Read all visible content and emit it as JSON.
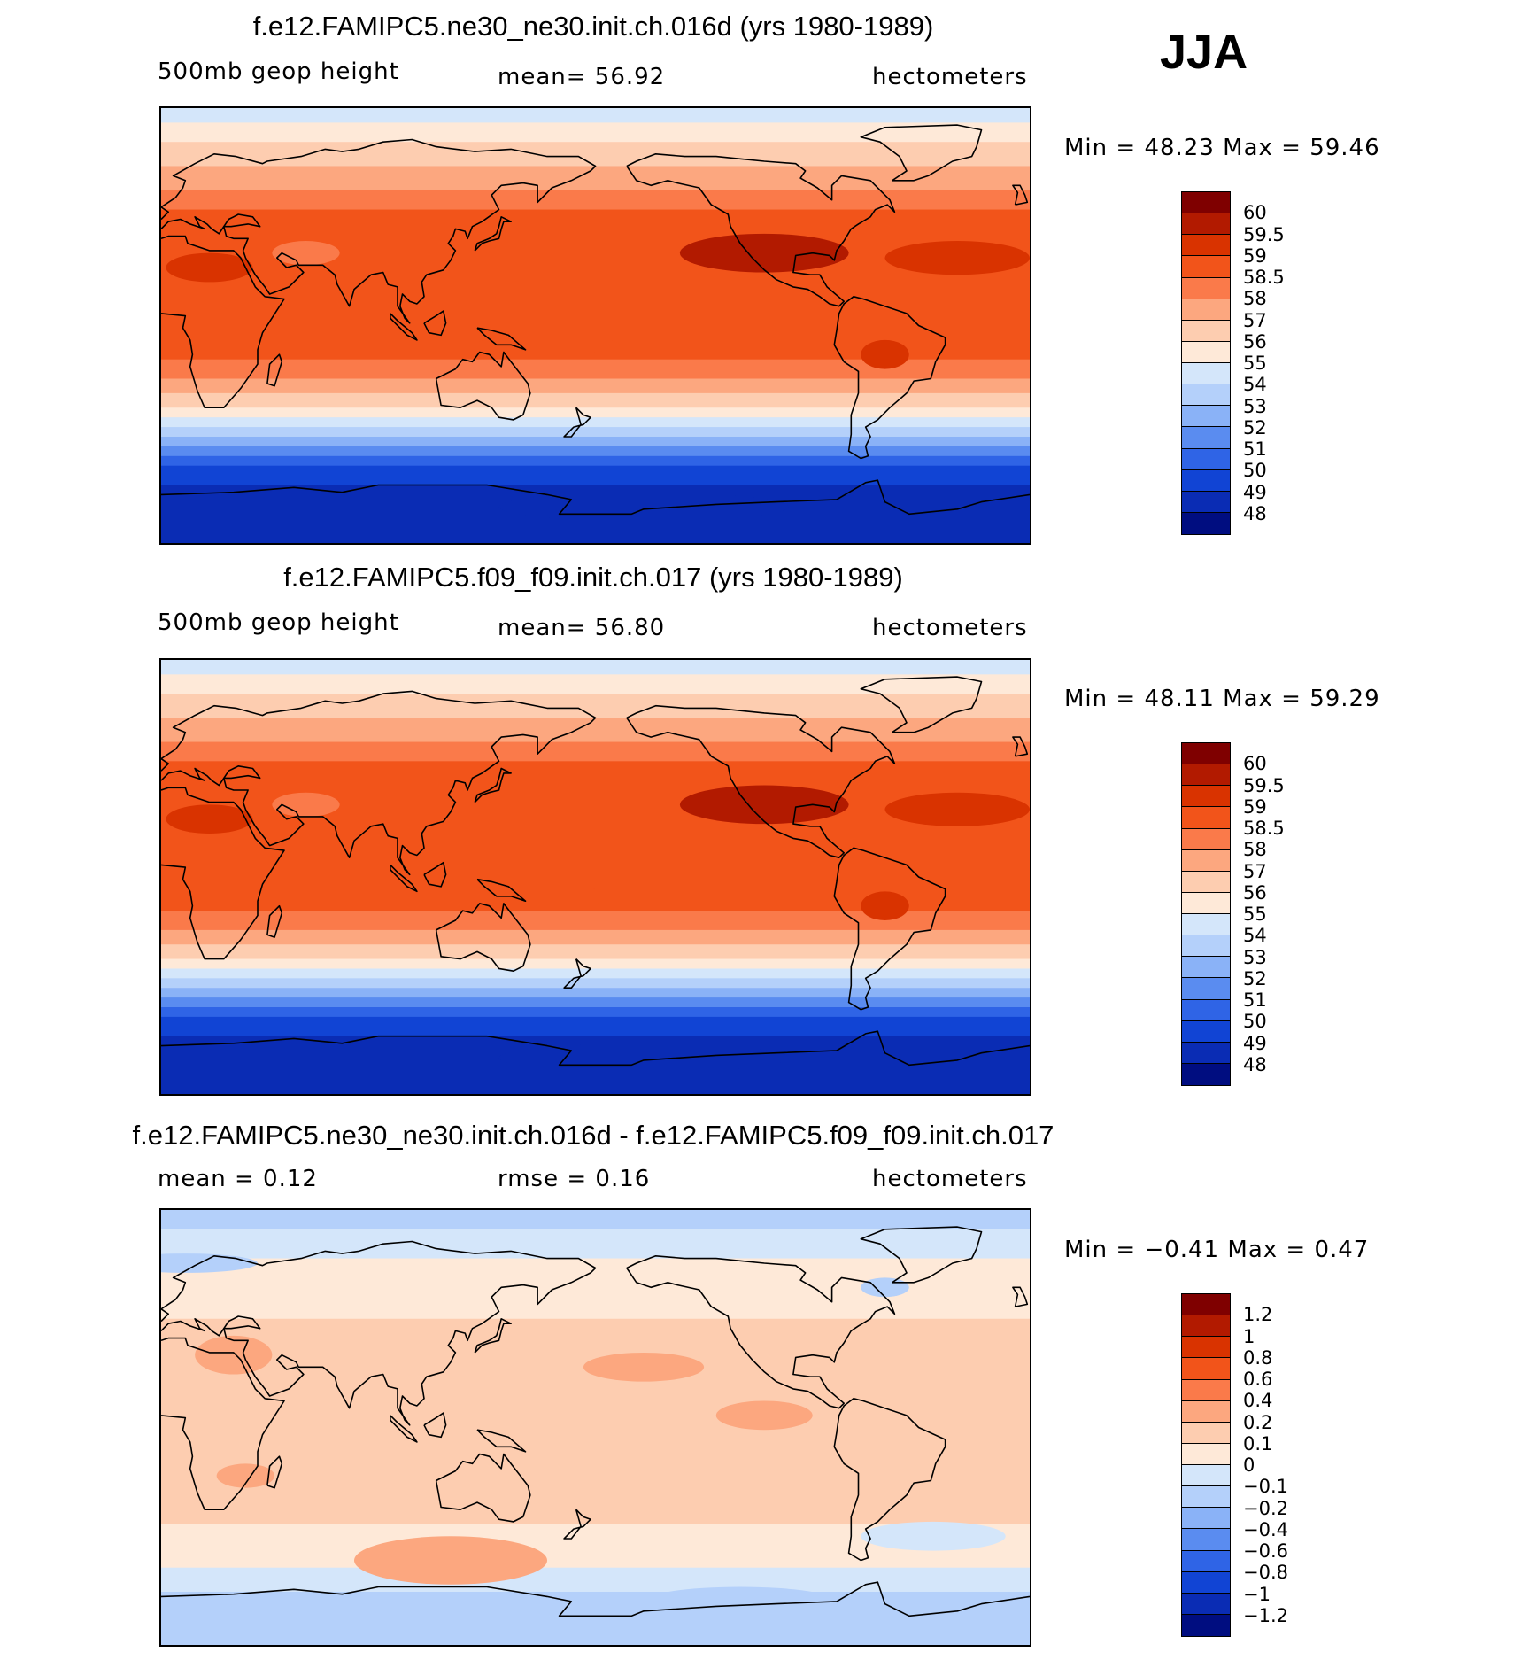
{
  "season": "JJA",
  "panels": [
    {
      "title": "f.e12.FAMIPC5.ne30_ne30.init.ch.016d (yrs 1980-1989)",
      "left_text": "500mb geop height",
      "center_text": "mean=   56.92",
      "units": "hectometers",
      "minmax": "Min =   48.23 Max =   59.46",
      "colorbar_colors": [
        "#7f0000",
        "#b21a00",
        "#d93300",
        "#f2541a",
        "#fa7a4a",
        "#fca77f",
        "#fdcdb0",
        "#fee9d8",
        "#d4e6fa",
        "#b4d0fa",
        "#8ab2f7",
        "#5a8cf0",
        "#2f64e6",
        "#1144d4",
        "#0a2cb4",
        "#000d80"
      ],
      "colorbar_labels": [
        "60",
        "59.5",
        "59",
        "58.5",
        "58",
        "57",
        "56",
        "55",
        "54",
        "53",
        "52",
        "51",
        "50",
        "49",
        "48"
      ],
      "field_variant": "model_a"
    },
    {
      "title": "f.e12.FAMIPC5.f09_f09.init.ch.017 (yrs 1980-1989)",
      "left_text": "500mb geop height",
      "center_text": "mean=   56.80",
      "units": "hectometers",
      "minmax": "Min =   48.11 Max =   59.29",
      "colorbar_colors": [
        "#7f0000",
        "#b21a00",
        "#d93300",
        "#f2541a",
        "#fa7a4a",
        "#fca77f",
        "#fdcdb0",
        "#fee9d8",
        "#d4e6fa",
        "#b4d0fa",
        "#8ab2f7",
        "#5a8cf0",
        "#2f64e6",
        "#1144d4",
        "#0a2cb4",
        "#000d80"
      ],
      "colorbar_labels": [
        "60",
        "59.5",
        "59",
        "58.5",
        "58",
        "57",
        "56",
        "55",
        "54",
        "53",
        "52",
        "51",
        "50",
        "49",
        "48"
      ],
      "field_variant": "model_b"
    },
    {
      "title": "f.e12.FAMIPC5.ne30_ne30.init.ch.016d - f.e12.FAMIPC5.f09_f09.init.ch.017",
      "left_text": "mean =     0.12",
      "center_text": "rmse =     0.16",
      "units": "hectometers",
      "minmax": "Min =   −0.41  Max =     0.47",
      "colorbar_colors": [
        "#7f0000",
        "#b21a00",
        "#d93300",
        "#f2541a",
        "#fa7a4a",
        "#fca77f",
        "#fdcdb0",
        "#fee9d8",
        "#d4e6fa",
        "#b4d0fa",
        "#8ab2f7",
        "#5a8cf0",
        "#2f64e6",
        "#1144d4",
        "#0a2cb4",
        "#000d80"
      ],
      "colorbar_labels": [
        "1.2",
        "1",
        "0.8",
        "0.6",
        "0.4",
        "0.2",
        "0.1",
        "0",
        "−0.1",
        "−0.2",
        "−0.4",
        "−0.6",
        "−0.8",
        "−1",
        "−1.2"
      ],
      "field_variant": "difference"
    }
  ]
}
